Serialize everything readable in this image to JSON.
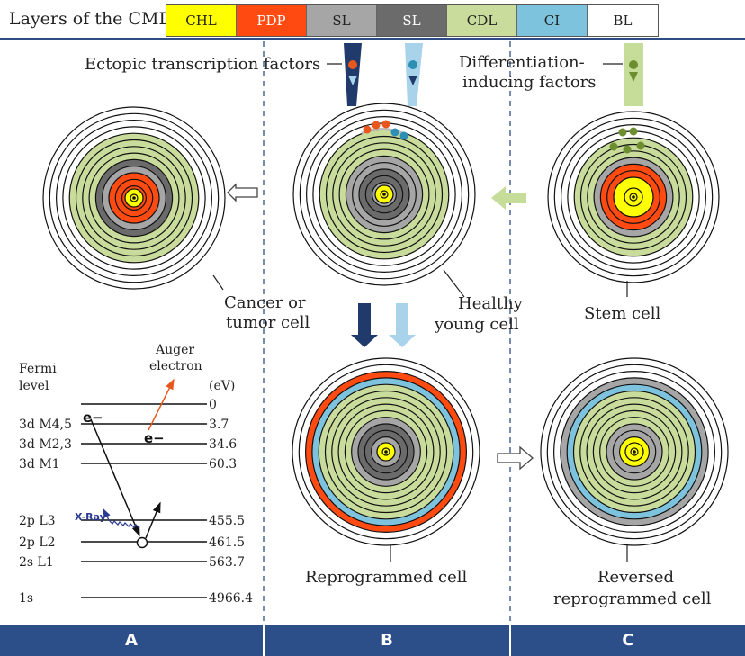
{
  "header": {
    "title": "Layers of the CMD",
    "layers": [
      {
        "label": "CHL",
        "color": "#ffff00",
        "text": "#222"
      },
      {
        "label": "PDP",
        "color": "#ff4a12",
        "text": "#ffffff"
      },
      {
        "label": "SL",
        "color": "#a6a6a6",
        "text": "#222"
      },
      {
        "label": "SL",
        "color": "#6b6b6b",
        "text": "#ffffff"
      },
      {
        "label": "CDL",
        "color": "#c9dc9b",
        "text": "#222"
      },
      {
        "label": "CI",
        "color": "#7ec3dd",
        "text": "#222"
      },
      {
        "label": "BL",
        "color": "#ffffff",
        "text": "#222"
      }
    ]
  },
  "labels": {
    "ectopic": "Ectopic transcription factors",
    "diff1": "Differentiation-",
    "diff2": "inducing factors",
    "cancer1": "Cancer or",
    "cancer2": "tumor cell",
    "healthy1": "Healthy",
    "healthy2": "young cell",
    "stem": "Stem cell",
    "reprog": "Reprogrammed cell",
    "rev1": "Reversed",
    "rev2": "reprogrammed cell"
  },
  "energy": {
    "fermi1": "Fermi",
    "fermi2": "level",
    "unit": "(eV)",
    "auger1": "Auger",
    "auger2": "electron",
    "xray": "X-Ray",
    "electron": "e−",
    "levels": [
      {
        "name": "",
        "value": "0"
      },
      {
        "name": "3d M4,5",
        "value": "3.7"
      },
      {
        "name": "3d M2,3",
        "value": "34.6"
      },
      {
        "name": "3d M1",
        "value": "60.3"
      },
      {
        "name": "2p L3",
        "value": "455.5"
      },
      {
        "name": "2p L2",
        "value": "461.5"
      },
      {
        "name": "2s L1",
        "value": "563.7"
      },
      {
        "name": "1s",
        "value": "4966.4"
      }
    ]
  },
  "panels": [
    "A",
    "B",
    "C"
  ],
  "colors": {
    "chl": "#ffff00",
    "pdp": "#ff4a12",
    "sl_light": "#a6a6a6",
    "sl_dark": "#6b6b6b",
    "cdl": "#c9dc9b",
    "ci": "#7ec3dd",
    "bl": "#ffffff",
    "navy": "#1f3a6b",
    "lightblue": "#a8d3ea",
    "green": "#c5dd98",
    "orange_dot": "#e8571e",
    "blue_dot": "#2c8fb3",
    "green_dot": "#6d8e2e"
  }
}
